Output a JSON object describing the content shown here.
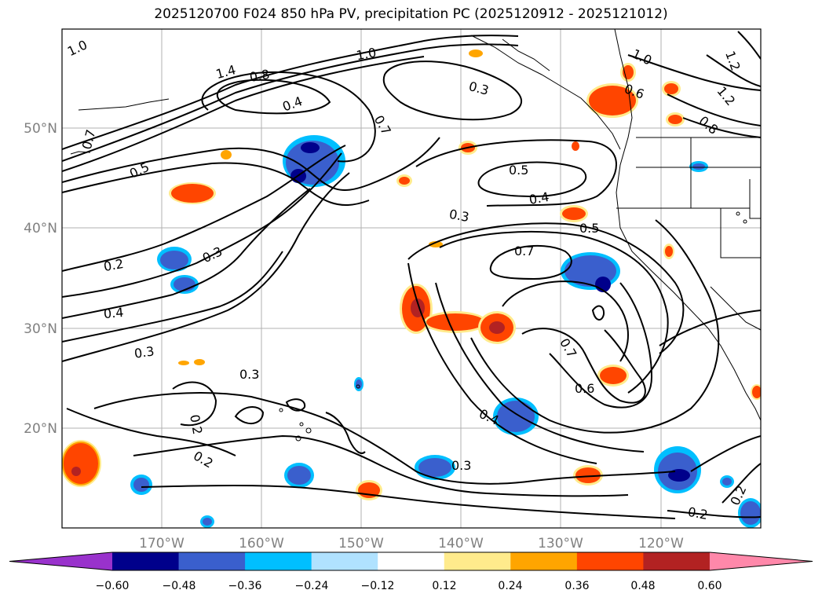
{
  "title": "2025120700 F024 850 hPa PV, precipitation PC (2025120912 - 2025121012)",
  "lat_labels": [
    "50°N",
    "40°N",
    "30°N",
    "20°N"
  ],
  "lon_labels": [
    "170°W",
    "160°W",
    "150°W",
    "140°W",
    "130°W",
    "120°W"
  ],
  "contour_labels": [
    "1.0",
    "1.4",
    "0.8",
    "1.0",
    "1.0",
    "1.2",
    "1.2",
    "0.8",
    "0.4",
    "0.3",
    "0.6",
    "0.7",
    "0.7",
    "0.5",
    "0.5",
    "0.4",
    "0.3",
    "0.5",
    "0.2",
    "0.3",
    "0.7",
    "0.4",
    "0.3",
    "0.3",
    "0.7",
    "0.6",
    "0.2",
    "0.2",
    "0.4",
    "0.3",
    "0.2",
    "0.2"
  ],
  "colorbar": {
    "ticks": [
      "−0.60",
      "−0.48",
      "−0.36",
      "−0.24",
      "−0.12",
      "0.12",
      "0.24",
      "0.36",
      "0.48",
      "0.60"
    ],
    "colors": [
      "#9932cc",
      "#00008b",
      "#3a5fcd",
      "#00bfff",
      "#b0e2ff",
      "#ffffff",
      "#ffeb8c",
      "#ffa500",
      "#ff4500",
      "#b22222",
      "#ff88aa"
    ]
  }
}
